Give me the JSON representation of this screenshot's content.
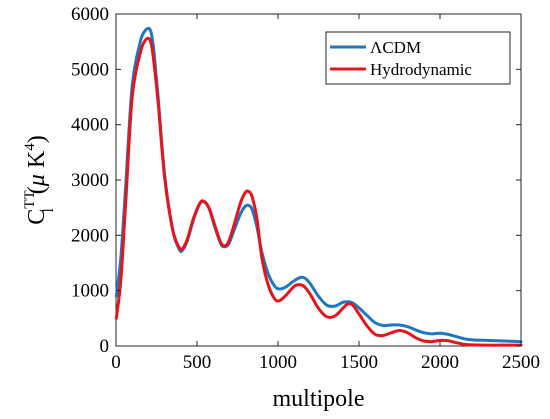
{
  "chart_data": {
    "type": "line",
    "title": "",
    "xlabel": "multipole",
    "ylabel": "C_l^TT(μ K^4)",
    "ylabel_parts": {
      "base": "C",
      "sup": "TT",
      "sub": "l",
      "paren_open": "(",
      "mu": "μ",
      "unit": " K",
      "unit_sup": "4",
      "paren_close": ")"
    },
    "xlim": [
      0,
      2500
    ],
    "ylim": [
      0,
      6000
    ],
    "xticks": [
      0,
      500,
      1000,
      1500,
      2000,
      2500
    ],
    "yticks": [
      0,
      1000,
      2000,
      3000,
      4000,
      5000,
      6000
    ],
    "grid": false,
    "legend_position": "top-right",
    "series": [
      {
        "name": "ΛCDM",
        "color": "#1f77c0",
        "x": [
          2,
          30,
          60,
          100,
          150,
          180,
          200,
          210,
          220,
          235,
          260,
          300,
          350,
          390,
          410,
          440,
          480,
          520,
          545,
          575,
          610,
          650,
          680,
          700,
          730,
          770,
          800,
          820,
          840,
          870,
          900,
          940,
          980,
          1010,
          1050,
          1100,
          1140,
          1170,
          1200,
          1250,
          1300,
          1350,
          1400,
          1430,
          1460,
          1500,
          1550,
          1600,
          1650,
          1700,
          1750,
          1800,
          1850,
          1900,
          1950,
          2000,
          2050,
          2100,
          2150,
          2200,
          2300,
          2400,
          2500
        ],
        "y": [
          900,
          1600,
          2900,
          4700,
          5500,
          5700,
          5740,
          5720,
          5620,
          5300,
          4500,
          3100,
          2100,
          1750,
          1730,
          1900,
          2300,
          2580,
          2600,
          2480,
          2150,
          1830,
          1800,
          1870,
          2100,
          2400,
          2530,
          2540,
          2470,
          2150,
          1700,
          1300,
          1080,
          1030,
          1070,
          1180,
          1240,
          1220,
          1120,
          900,
          740,
          720,
          790,
          800,
          780,
          690,
          550,
          420,
          370,
          380,
          380,
          350,
          290,
          240,
          220,
          230,
          210,
          170,
          130,
          110,
          100,
          90,
          80
        ]
      },
      {
        "name": "Hydrodynamic",
        "color": "#e8141c",
        "x": [
          2,
          30,
          60,
          100,
          150,
          180,
          200,
          210,
          220,
          235,
          260,
          300,
          350,
          390,
          410,
          440,
          480,
          520,
          545,
          575,
          610,
          650,
          680,
          700,
          730,
          770,
          800,
          820,
          840,
          870,
          900,
          940,
          980,
          1010,
          1050,
          1100,
          1130,
          1160,
          1200,
          1250,
          1300,
          1350,
          1400,
          1430,
          1460,
          1500,
          1550,
          1600,
          1650,
          1700,
          1750,
          1800,
          1850,
          1900,
          1950,
          2000,
          2050,
          2100,
          2150,
          2200,
          2300,
          2400,
          2500
        ],
        "y": [
          500,
          1200,
          2600,
          4500,
          5300,
          5520,
          5560,
          5530,
          5430,
          5100,
          4400,
          3050,
          2100,
          1780,
          1760,
          1930,
          2320,
          2590,
          2610,
          2490,
          2180,
          1850,
          1820,
          1920,
          2200,
          2600,
          2780,
          2790,
          2700,
          2300,
          1600,
          1100,
          850,
          820,
          920,
          1080,
          1110,
          1080,
          930,
          680,
          530,
          540,
          680,
          760,
          740,
          580,
          360,
          210,
          190,
          240,
          280,
          240,
          150,
          90,
          80,
          100,
          95,
          60,
          30,
          20,
          15,
          15,
          15
        ]
      }
    ]
  }
}
